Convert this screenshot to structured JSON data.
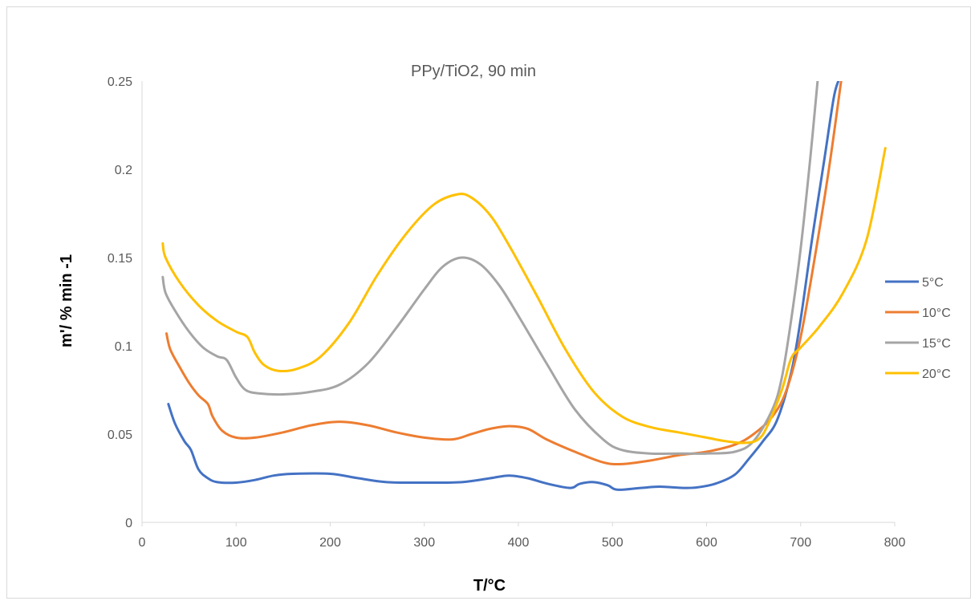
{
  "chart_data": {
    "type": "line",
    "title": "PPy/TiO2, 90 min",
    "xlabel": "T/°C",
    "ylabel": "m'/ % min -1",
    "xlim": [
      0,
      800
    ],
    "ylim": [
      0,
      0.25
    ],
    "x_ticks": [
      "0",
      "100",
      "200",
      "300",
      "400",
      "500",
      "600",
      "700",
      "800"
    ],
    "y_ticks": [
      "0",
      "0.05",
      "0.1",
      "0.15",
      "0.2",
      "0.25"
    ],
    "grid": false,
    "legend_position": "right",
    "series": [
      {
        "name": "5°C",
        "color": "#4472c4",
        "points": [
          [
            28,
            0.067
          ],
          [
            35,
            0.056
          ],
          [
            45,
            0.046
          ],
          [
            52,
            0.041
          ],
          [
            60,
            0.03
          ],
          [
            70,
            0.025
          ],
          [
            80,
            0.0228
          ],
          [
            100,
            0.0225
          ],
          [
            120,
            0.024
          ],
          [
            140,
            0.0265
          ],
          [
            160,
            0.0275
          ],
          [
            200,
            0.0275
          ],
          [
            230,
            0.025
          ],
          [
            260,
            0.0228
          ],
          [
            300,
            0.0225
          ],
          [
            340,
            0.0228
          ],
          [
            370,
            0.025
          ],
          [
            390,
            0.0265
          ],
          [
            410,
            0.025
          ],
          [
            430,
            0.022
          ],
          [
            455,
            0.0195
          ],
          [
            465,
            0.0218
          ],
          [
            480,
            0.0228
          ],
          [
            495,
            0.021
          ],
          [
            505,
            0.0185
          ],
          [
            530,
            0.0195
          ],
          [
            550,
            0.0202
          ],
          [
            575,
            0.0195
          ],
          [
            590,
            0.0198
          ],
          [
            610,
            0.022
          ],
          [
            630,
            0.027
          ],
          [
            645,
            0.036
          ],
          [
            660,
            0.046
          ],
          [
            675,
            0.058
          ],
          [
            690,
            0.085
          ],
          [
            700,
            0.115
          ],
          [
            712,
            0.16
          ],
          [
            725,
            0.205
          ],
          [
            735,
            0.24
          ],
          [
            740,
            0.25
          ]
        ]
      },
      {
        "name": "10°C",
        "color": "#ed7d31",
        "points": [
          [
            26,
            0.107
          ],
          [
            30,
            0.098
          ],
          [
            40,
            0.088
          ],
          [
            50,
            0.079
          ],
          [
            60,
            0.072
          ],
          [
            70,
            0.067
          ],
          [
            75,
            0.06
          ],
          [
            85,
            0.052
          ],
          [
            100,
            0.048
          ],
          [
            120,
            0.048
          ],
          [
            150,
            0.051
          ],
          [
            180,
            0.055
          ],
          [
            210,
            0.057
          ],
          [
            240,
            0.055
          ],
          [
            270,
            0.051
          ],
          [
            300,
            0.048
          ],
          [
            330,
            0.047
          ],
          [
            350,
            0.05
          ],
          [
            370,
            0.053
          ],
          [
            390,
            0.0545
          ],
          [
            410,
            0.053
          ],
          [
            430,
            0.047
          ],
          [
            460,
            0.04
          ],
          [
            490,
            0.034
          ],
          [
            510,
            0.033
          ],
          [
            540,
            0.035
          ],
          [
            570,
            0.038
          ],
          [
            600,
            0.04
          ],
          [
            630,
            0.044
          ],
          [
            650,
            0.05
          ],
          [
            670,
            0.06
          ],
          [
            685,
            0.075
          ],
          [
            700,
            0.105
          ],
          [
            715,
            0.15
          ],
          [
            730,
            0.2
          ],
          [
            743,
            0.25
          ]
        ]
      },
      {
        "name": "15°C",
        "color": "#a5a5a5",
        "points": [
          [
            22,
            0.139
          ],
          [
            25,
            0.13
          ],
          [
            35,
            0.12
          ],
          [
            50,
            0.108
          ],
          [
            65,
            0.099
          ],
          [
            80,
            0.094
          ],
          [
            90,
            0.092
          ],
          [
            100,
            0.082
          ],
          [
            110,
            0.075
          ],
          [
            125,
            0.073
          ],
          [
            150,
            0.0725
          ],
          [
            180,
            0.074
          ],
          [
            210,
            0.078
          ],
          [
            240,
            0.09
          ],
          [
            270,
            0.11
          ],
          [
            300,
            0.132
          ],
          [
            320,
            0.145
          ],
          [
            340,
            0.15
          ],
          [
            360,
            0.146
          ],
          [
            380,
            0.134
          ],
          [
            400,
            0.117
          ],
          [
            430,
            0.09
          ],
          [
            460,
            0.064
          ],
          [
            490,
            0.047
          ],
          [
            510,
            0.041
          ],
          [
            540,
            0.039
          ],
          [
            570,
            0.039
          ],
          [
            600,
            0.039
          ],
          [
            630,
            0.04
          ],
          [
            650,
            0.046
          ],
          [
            670,
            0.064
          ],
          [
            680,
            0.082
          ],
          [
            690,
            0.115
          ],
          [
            700,
            0.155
          ],
          [
            710,
            0.205
          ],
          [
            718,
            0.25
          ]
        ]
      },
      {
        "name": "20°C",
        "color": "#ffc000",
        "points": [
          [
            22,
            0.158
          ],
          [
            25,
            0.15
          ],
          [
            40,
            0.136
          ],
          [
            60,
            0.123
          ],
          [
            80,
            0.114
          ],
          [
            100,
            0.108
          ],
          [
            112,
            0.105
          ],
          [
            120,
            0.096
          ],
          [
            130,
            0.089
          ],
          [
            145,
            0.0858
          ],
          [
            165,
            0.087
          ],
          [
            190,
            0.094
          ],
          [
            220,
            0.113
          ],
          [
            250,
            0.14
          ],
          [
            280,
            0.163
          ],
          [
            310,
            0.18
          ],
          [
            335,
            0.1858
          ],
          [
            350,
            0.184
          ],
          [
            370,
            0.174
          ],
          [
            390,
            0.157
          ],
          [
            420,
            0.128
          ],
          [
            450,
            0.098
          ],
          [
            480,
            0.074
          ],
          [
            510,
            0.06
          ],
          [
            540,
            0.054
          ],
          [
            570,
            0.051
          ],
          [
            600,
            0.048
          ],
          [
            620,
            0.046
          ],
          [
            640,
            0.045
          ],
          [
            655,
            0.047
          ],
          [
            665,
            0.055
          ],
          [
            680,
            0.075
          ],
          [
            690,
            0.093
          ],
          [
            700,
            0.099
          ],
          [
            720,
            0.111
          ],
          [
            745,
            0.13
          ],
          [
            770,
            0.16
          ],
          [
            790,
            0.212
          ]
        ]
      }
    ]
  }
}
